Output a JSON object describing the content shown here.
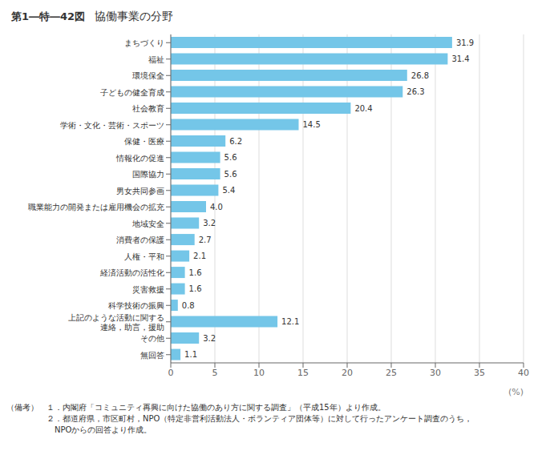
{
  "chart_data": {
    "type": "bar",
    "orientation": "horizontal",
    "title": "第1―特―42図",
    "subtitle": "協働事業の分野",
    "categories": [
      "まちづくり",
      "福祉",
      "環境保全",
      "子どもの健全育成",
      "社会教育",
      "学術・文化・芸術・スポーツ",
      "保健・医療",
      "情報化の促進",
      "国際協力",
      "男女共同参画",
      "職業能力の開発または雇用機会の拡充",
      "地域安全",
      "消費者の保護",
      "人権・平和",
      "経済活動の活性化",
      "災害救援",
      "科学技術の振興",
      "上記のような活動に関する\n連絡，助言，援助",
      "その他",
      "無回答"
    ],
    "values": [
      31.9,
      31.4,
      26.8,
      26.3,
      20.4,
      14.5,
      6.2,
      5.6,
      5.6,
      5.4,
      4.0,
      3.2,
      2.7,
      2.1,
      1.6,
      1.6,
      0.8,
      12.1,
      3.2,
      1.1
    ],
    "value_labels": [
      "31.9",
      "31.4",
      "26.8",
      "26.3",
      "20.4",
      "14.5",
      "6.2",
      "5.6",
      "5.6",
      "5.4",
      "4.0",
      "3.2",
      "2.7",
      "2.1",
      "1.6",
      "1.6",
      "0.8",
      "12.1",
      "3.2",
      "1.1"
    ],
    "data_labels": true,
    "color": "#74c6e8",
    "xlim": [
      0,
      40
    ],
    "xticks": [
      0,
      5,
      10,
      15,
      20,
      25,
      30,
      35,
      40
    ],
    "xlabel": "(%)",
    "grid": true,
    "annotations": [
      "（備考）　１．内閣府「コミュニティ再興に向けた協働のあり方に関する調査」（平成15年）より作成。",
      "　　　　　２．都道府県，市区町村，NPO（特定非営利活動法人・ボランティア団体等）に対して行ったアンケート調査のうち，",
      "　　　　　　NPOからの回答より作成。"
    ]
  }
}
